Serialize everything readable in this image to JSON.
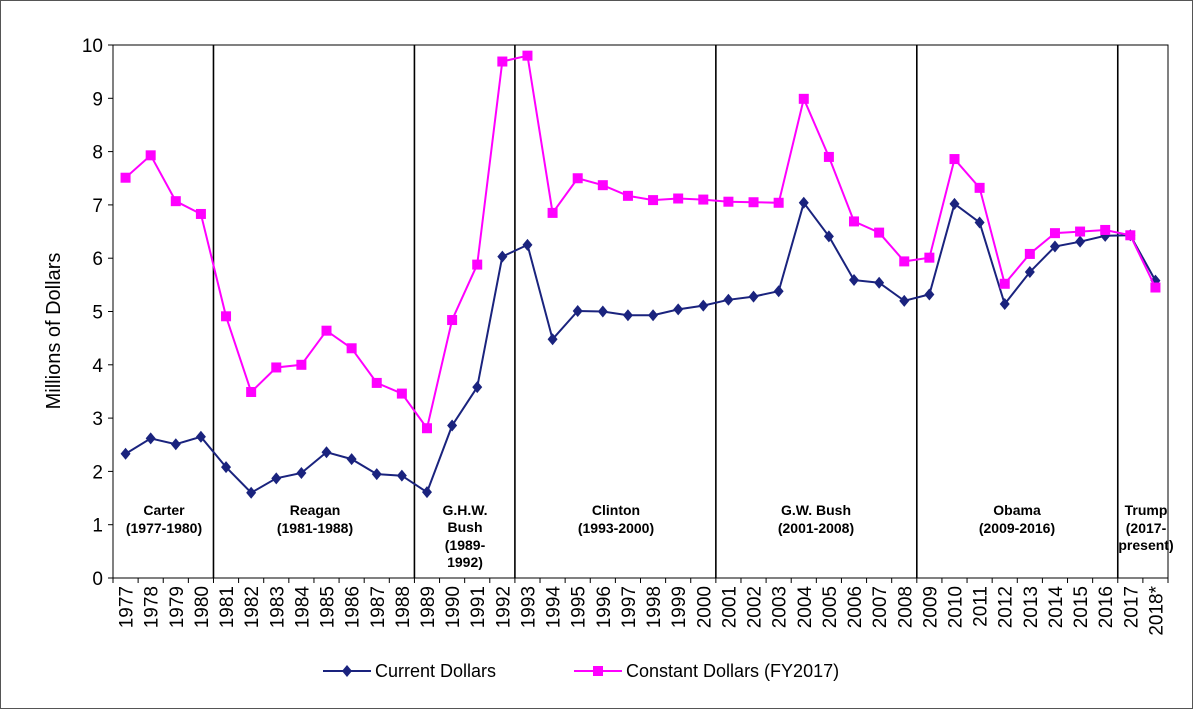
{
  "chart_data": {
    "type": "line",
    "title": "",
    "xlabel": "",
    "ylabel": "Millions of Dollars",
    "ylim": [
      0,
      10
    ],
    "yticks": [
      "0",
      "1",
      "2",
      "3",
      "4",
      "5",
      "6",
      "7",
      "8",
      "9",
      "10"
    ],
    "categories": [
      "1977",
      "1978",
      "1979",
      "1980",
      "1981",
      "1982",
      "1983",
      "1984",
      "1985",
      "1986",
      "1987",
      "1988",
      "1989",
      "1990",
      "1991",
      "1992",
      "1993",
      "1994",
      "1995",
      "1996",
      "1997",
      "1998",
      "1999",
      "2000",
      "2001",
      "2002",
      "2003",
      "2004",
      "2005",
      "2006",
      "2007",
      "2008",
      "2009",
      "2010",
      "2011",
      "2012",
      "2013",
      "2014",
      "2015",
      "2016",
      "2017",
      "2018*"
    ],
    "series": [
      {
        "name": "Current Dollars",
        "color": "#1a237e",
        "marker": "diamond",
        "values": [
          2.33,
          2.62,
          2.51,
          2.65,
          2.08,
          1.6,
          1.87,
          1.97,
          2.36,
          2.23,
          1.95,
          1.92,
          1.61,
          2.86,
          3.58,
          6.03,
          6.25,
          4.48,
          5.01,
          5.0,
          4.93,
          4.93,
          5.04,
          5.11,
          5.22,
          5.28,
          5.38,
          7.04,
          6.41,
          5.59,
          5.54,
          5.2,
          5.32,
          7.02,
          6.67,
          5.14,
          5.74,
          6.22,
          6.31,
          6.42,
          6.43,
          5.58
        ]
      },
      {
        "name": "Constant Dollars (FY2017)",
        "color": "#ff00ff",
        "marker": "square",
        "values": [
          7.51,
          7.93,
          7.07,
          6.83,
          4.91,
          3.49,
          3.95,
          4.0,
          4.64,
          4.31,
          3.66,
          3.46,
          2.81,
          4.84,
          5.88,
          9.69,
          9.8,
          6.85,
          7.5,
          7.37,
          7.17,
          7.09,
          7.12,
          7.1,
          7.06,
          7.05,
          7.04,
          8.99,
          7.9,
          6.69,
          6.48,
          5.94,
          6.01,
          7.86,
          7.32,
          5.52,
          6.08,
          6.47,
          6.5,
          6.53,
          6.43,
          5.45
        ]
      }
    ],
    "eras": [
      {
        "name": "Carter",
        "years": "(1977-1980)"
      },
      {
        "name": "Reagan",
        "years": "(1981-1988)"
      },
      {
        "name": "G.H.W.",
        "name2": "Bush",
        "years": "(1989-",
        "years2": "1992)"
      },
      {
        "name": "Clinton",
        "years": "(1993-2000)"
      },
      {
        "name": "G.W. Bush",
        "years": "(2001-2008)"
      },
      {
        "name": "Obama",
        "years": "(2009-2016)"
      },
      {
        "name": "Trump",
        "years": "(2017-",
        "years2": "present)"
      }
    ],
    "legend": "bottom",
    "grid": false
  }
}
